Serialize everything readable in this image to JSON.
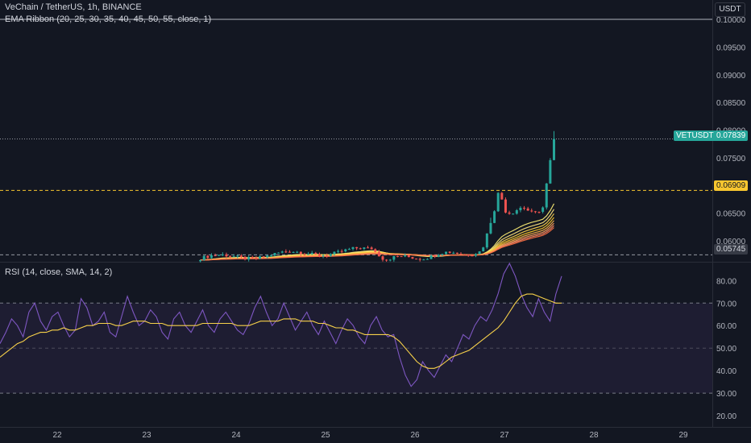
{
  "header": {
    "symbol_title": "VeChain / TetherUS, 1h, BINANCE",
    "indicator_ema": "EMA Ribbon (20, 25, 30, 35, 40, 45, 50, 55, close, 1)",
    "currency": "USDT"
  },
  "rsi_panel": {
    "title": "RSI (14, close, SMA, 14, 2)"
  },
  "price_axis": {
    "ticks": [
      "0.10000",
      "0.09500",
      "0.09000",
      "0.08500",
      "0.08000",
      "0.07500",
      "0.07000",
      "0.06500",
      "0.06000"
    ]
  },
  "rsi_axis": {
    "ticks": [
      "80.00",
      "70.00",
      "60.00",
      "50.00",
      "40.00",
      "30.00",
      "20.00"
    ]
  },
  "time_axis": {
    "ticks": [
      "22",
      "23",
      "24",
      "25",
      "26",
      "27",
      "28",
      "29"
    ]
  },
  "price_labels": {
    "last_symbol": "VETUSDT",
    "last_price": "0.07839",
    "level_yellow": "0.06909",
    "level_gray": "0.05745"
  },
  "colors": {
    "background": "#131722",
    "up": "#26a69a",
    "down": "#ef5350",
    "rsi": "#7e57c2",
    "rsi_ma": "#f7d14a",
    "level_yellow": "#f7c62f",
    "band": "#7e57c2"
  },
  "chart_data": [
    {
      "type": "candlestick",
      "title": "VeChain / TetherUS, 1h, BINANCE",
      "ylim": [
        0.0562,
        0.1035
      ],
      "x_ticks": [
        "22",
        "23",
        "24",
        "25",
        "26",
        "27",
        "28",
        "29"
      ],
      "reference_lines": [
        0.1,
        0.07839,
        0.06909,
        0.05745
      ],
      "last_price": 0.07839,
      "series_approx": {
        "day_24_to_27_range": [
          0.0563,
          0.0593
        ],
        "day_27_peak": 0.0697,
        "day_27_6h_low": 0.064,
        "final_high": 0.0797,
        "final_close": 0.07839
      },
      "ema_ribbon_periods": [
        20,
        25,
        30,
        35,
        40,
        45,
        50,
        55
      ]
    },
    {
      "type": "line",
      "title": "RSI (14, close, SMA, 14, 2)",
      "ylim": [
        15,
        88
      ],
      "bands": [
        30,
        70
      ],
      "y_ticks": [
        80,
        70,
        60,
        50,
        40,
        30,
        20
      ],
      "series": [
        {
          "values": [
            52,
            57,
            63,
            60,
            55,
            66,
            70,
            62,
            58,
            64,
            66,
            60,
            55,
            58,
            72,
            68,
            60,
            62,
            66,
            57,
            55,
            64,
            73,
            66,
            60,
            62,
            67,
            64,
            57,
            54,
            63,
            66,
            60,
            57,
            62,
            67,
            60,
            57,
            63,
            66,
            62,
            58,
            56,
            61,
            68,
            73,
            66,
            60,
            63,
            70,
            64,
            58,
            62,
            66,
            60,
            56,
            62,
            57,
            52,
            58,
            63,
            60,
            55,
            52,
            60,
            64,
            58,
            55,
            56,
            46,
            38,
            33,
            36,
            44,
            40,
            37,
            42,
            47,
            44,
            50,
            56,
            54,
            60,
            64,
            62,
            67,
            74,
            83,
            90,
            82,
            74,
            68,
            64,
            72,
            66,
            62,
            74,
            82
          ]
        },
        {
          "values": [
            46,
            48,
            50,
            52,
            53,
            55,
            56,
            57,
            57,
            58,
            58,
            59,
            58,
            58,
            59,
            60,
            60,
            61,
            61,
            61,
            60,
            60,
            61,
            62,
            62,
            62,
            61,
            61,
            61,
            60,
            60,
            60,
            60,
            60,
            60,
            61,
            61,
            61,
            61,
            61,
            61,
            60,
            60,
            60,
            61,
            62,
            62,
            62,
            62,
            63,
            63,
            63,
            62,
            62,
            62,
            61,
            61,
            60,
            59,
            59,
            58,
            58,
            57,
            56,
            56,
            56,
            56,
            56,
            55,
            53,
            50,
            47,
            44,
            42,
            41,
            41,
            42,
            44,
            46,
            47,
            48,
            49,
            51,
            53,
            55,
            57,
            59,
            62,
            66,
            70,
            73,
            74,
            74,
            73,
            72,
            71,
            70,
            70
          ]
        }
      ]
    }
  ]
}
